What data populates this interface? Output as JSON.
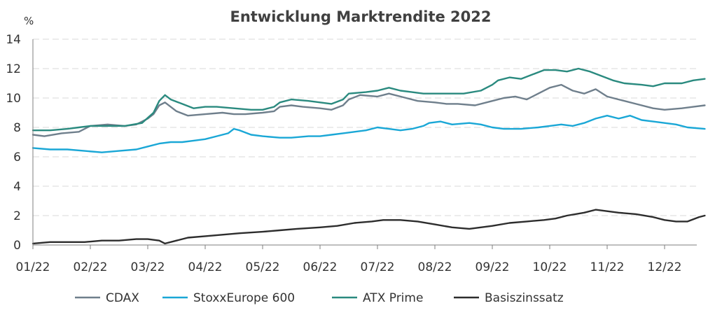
{
  "chart_data": {
    "type": "line",
    "title": "Entwicklung Marktrendite 2022",
    "ylabel": "%",
    "xlabel": "",
    "ylim": [
      0,
      14
    ],
    "yticks": [
      0,
      2,
      4,
      6,
      8,
      10,
      12,
      14
    ],
    "categories": [
      "01/22",
      "02/22",
      "03/22",
      "04/22",
      "05/22",
      "06/22",
      "07/22",
      "08/22",
      "09/22",
      "10/22",
      "11/22",
      "12/22"
    ],
    "grid": true,
    "legend_position": "bottom",
    "x_extent_months": 11.7,
    "series": [
      {
        "name": "CDAX",
        "color": "#6f7f8c",
        "points": [
          [
            0,
            7.5
          ],
          [
            0.2,
            7.4
          ],
          [
            0.5,
            7.6
          ],
          [
            0.8,
            7.7
          ],
          [
            1.0,
            8.1
          ],
          [
            1.3,
            8.2
          ],
          [
            1.6,
            8.1
          ],
          [
            1.8,
            8.2
          ],
          [
            2.0,
            8.6
          ],
          [
            2.1,
            8.9
          ],
          [
            2.2,
            9.5
          ],
          [
            2.3,
            9.7
          ],
          [
            2.5,
            9.1
          ],
          [
            2.7,
            8.8
          ],
          [
            3.0,
            8.9
          ],
          [
            3.3,
            9.0
          ],
          [
            3.5,
            8.9
          ],
          [
            3.7,
            8.9
          ],
          [
            4.0,
            9.0
          ],
          [
            4.2,
            9.1
          ],
          [
            4.3,
            9.4
          ],
          [
            4.5,
            9.5
          ],
          [
            4.7,
            9.4
          ],
          [
            5.0,
            9.3
          ],
          [
            5.2,
            9.2
          ],
          [
            5.4,
            9.5
          ],
          [
            5.5,
            9.9
          ],
          [
            5.7,
            10.2
          ],
          [
            6.0,
            10.1
          ],
          [
            6.2,
            10.3
          ],
          [
            6.4,
            10.1
          ],
          [
            6.5,
            10.0
          ],
          [
            6.7,
            9.8
          ],
          [
            7.0,
            9.7
          ],
          [
            7.2,
            9.6
          ],
          [
            7.4,
            9.6
          ],
          [
            7.7,
            9.5
          ],
          [
            8.0,
            9.8
          ],
          [
            8.2,
            10.0
          ],
          [
            8.4,
            10.1
          ],
          [
            8.6,
            9.9
          ],
          [
            8.8,
            10.3
          ],
          [
            9.0,
            10.7
          ],
          [
            9.2,
            10.9
          ],
          [
            9.4,
            10.5
          ],
          [
            9.6,
            10.3
          ],
          [
            9.8,
            10.6
          ],
          [
            10.0,
            10.1
          ],
          [
            10.2,
            9.9
          ],
          [
            10.5,
            9.6
          ],
          [
            10.8,
            9.3
          ],
          [
            11.0,
            9.2
          ],
          [
            11.3,
            9.3
          ],
          [
            11.5,
            9.4
          ],
          [
            11.7,
            9.5
          ]
        ]
      },
      {
        "name": "StoxxEurope 600",
        "color": "#1aa7d6",
        "points": [
          [
            0,
            6.6
          ],
          [
            0.3,
            6.5
          ],
          [
            0.6,
            6.5
          ],
          [
            0.9,
            6.4
          ],
          [
            1.2,
            6.3
          ],
          [
            1.5,
            6.4
          ],
          [
            1.8,
            6.5
          ],
          [
            2.0,
            6.7
          ],
          [
            2.2,
            6.9
          ],
          [
            2.4,
            7.0
          ],
          [
            2.6,
            7.0
          ],
          [
            2.8,
            7.1
          ],
          [
            3.0,
            7.2
          ],
          [
            3.2,
            7.4
          ],
          [
            3.4,
            7.6
          ],
          [
            3.5,
            7.9
          ],
          [
            3.6,
            7.8
          ],
          [
            3.8,
            7.5
          ],
          [
            4.0,
            7.4
          ],
          [
            4.3,
            7.3
          ],
          [
            4.5,
            7.3
          ],
          [
            4.8,
            7.4
          ],
          [
            5.0,
            7.4
          ],
          [
            5.2,
            7.5
          ],
          [
            5.4,
            7.6
          ],
          [
            5.6,
            7.7
          ],
          [
            5.8,
            7.8
          ],
          [
            6.0,
            8.0
          ],
          [
            6.2,
            7.9
          ],
          [
            6.4,
            7.8
          ],
          [
            6.6,
            7.9
          ],
          [
            6.8,
            8.1
          ],
          [
            6.9,
            8.3
          ],
          [
            7.1,
            8.4
          ],
          [
            7.3,
            8.2
          ],
          [
            7.6,
            8.3
          ],
          [
            7.8,
            8.2
          ],
          [
            8.0,
            8.0
          ],
          [
            8.2,
            7.9
          ],
          [
            8.5,
            7.9
          ],
          [
            8.8,
            8.0
          ],
          [
            9.0,
            8.1
          ],
          [
            9.2,
            8.2
          ],
          [
            9.4,
            8.1
          ],
          [
            9.6,
            8.3
          ],
          [
            9.8,
            8.6
          ],
          [
            10.0,
            8.8
          ],
          [
            10.2,
            8.6
          ],
          [
            10.4,
            8.8
          ],
          [
            10.6,
            8.5
          ],
          [
            10.8,
            8.4
          ],
          [
            11.0,
            8.3
          ],
          [
            11.2,
            8.2
          ],
          [
            11.4,
            8.0
          ],
          [
            11.7,
            7.9
          ]
        ]
      },
      {
        "name": "ATX Prime",
        "color": "#2a8a7f",
        "points": [
          [
            0,
            7.8
          ],
          [
            0.3,
            7.8
          ],
          [
            0.6,
            7.9
          ],
          [
            0.8,
            8.0
          ],
          [
            1.0,
            8.1
          ],
          [
            1.3,
            8.1
          ],
          [
            1.6,
            8.1
          ],
          [
            1.9,
            8.3
          ],
          [
            2.1,
            9.0
          ],
          [
            2.2,
            9.8
          ],
          [
            2.3,
            10.2
          ],
          [
            2.4,
            9.9
          ],
          [
            2.6,
            9.6
          ],
          [
            2.8,
            9.3
          ],
          [
            3.0,
            9.4
          ],
          [
            3.2,
            9.4
          ],
          [
            3.5,
            9.3
          ],
          [
            3.8,
            9.2
          ],
          [
            4.0,
            9.2
          ],
          [
            4.2,
            9.4
          ],
          [
            4.3,
            9.7
          ],
          [
            4.5,
            9.9
          ],
          [
            4.8,
            9.8
          ],
          [
            5.0,
            9.7
          ],
          [
            5.2,
            9.6
          ],
          [
            5.4,
            9.9
          ],
          [
            5.5,
            10.3
          ],
          [
            5.8,
            10.4
          ],
          [
            6.0,
            10.5
          ],
          [
            6.2,
            10.7
          ],
          [
            6.4,
            10.5
          ],
          [
            6.6,
            10.4
          ],
          [
            6.8,
            10.3
          ],
          [
            7.0,
            10.3
          ],
          [
            7.2,
            10.3
          ],
          [
            7.5,
            10.3
          ],
          [
            7.8,
            10.5
          ],
          [
            8.0,
            10.9
          ],
          [
            8.1,
            11.2
          ],
          [
            8.3,
            11.4
          ],
          [
            8.5,
            11.3
          ],
          [
            8.7,
            11.6
          ],
          [
            8.9,
            11.9
          ],
          [
            9.1,
            11.9
          ],
          [
            9.3,
            11.8
          ],
          [
            9.5,
            12.0
          ],
          [
            9.7,
            11.8
          ],
          [
            9.9,
            11.5
          ],
          [
            10.1,
            11.2
          ],
          [
            10.3,
            11.0
          ],
          [
            10.6,
            10.9
          ],
          [
            10.8,
            10.8
          ],
          [
            11.0,
            11.0
          ],
          [
            11.3,
            11.0
          ],
          [
            11.5,
            11.2
          ],
          [
            11.7,
            11.3
          ]
        ]
      },
      {
        "name": "Basiszinssatz",
        "color": "#2d2d2d",
        "points": [
          [
            0,
            0.1
          ],
          [
            0.3,
            0.2
          ],
          [
            0.6,
            0.2
          ],
          [
            0.9,
            0.2
          ],
          [
            1.2,
            0.3
          ],
          [
            1.5,
            0.3
          ],
          [
            1.8,
            0.4
          ],
          [
            2.0,
            0.4
          ],
          [
            2.2,
            0.3
          ],
          [
            2.3,
            0.1
          ],
          [
            2.5,
            0.3
          ],
          [
            2.7,
            0.5
          ],
          [
            3.0,
            0.6
          ],
          [
            3.3,
            0.7
          ],
          [
            3.6,
            0.8
          ],
          [
            4.0,
            0.9
          ],
          [
            4.3,
            1.0
          ],
          [
            4.6,
            1.1
          ],
          [
            5.0,
            1.2
          ],
          [
            5.3,
            1.3
          ],
          [
            5.6,
            1.5
          ],
          [
            5.9,
            1.6
          ],
          [
            6.1,
            1.7
          ],
          [
            6.4,
            1.7
          ],
          [
            6.7,
            1.6
          ],
          [
            7.0,
            1.4
          ],
          [
            7.3,
            1.2
          ],
          [
            7.6,
            1.1
          ],
          [
            8.0,
            1.3
          ],
          [
            8.3,
            1.5
          ],
          [
            8.6,
            1.6
          ],
          [
            8.9,
            1.7
          ],
          [
            9.1,
            1.8
          ],
          [
            9.3,
            2.0
          ],
          [
            9.6,
            2.2
          ],
          [
            9.8,
            2.4
          ],
          [
            10.0,
            2.3
          ],
          [
            10.2,
            2.2
          ],
          [
            10.5,
            2.1
          ],
          [
            10.8,
            1.9
          ],
          [
            11.0,
            1.7
          ],
          [
            11.2,
            1.6
          ],
          [
            11.4,
            1.6
          ],
          [
            11.6,
            1.9
          ],
          [
            11.7,
            2.0
          ]
        ]
      }
    ]
  }
}
